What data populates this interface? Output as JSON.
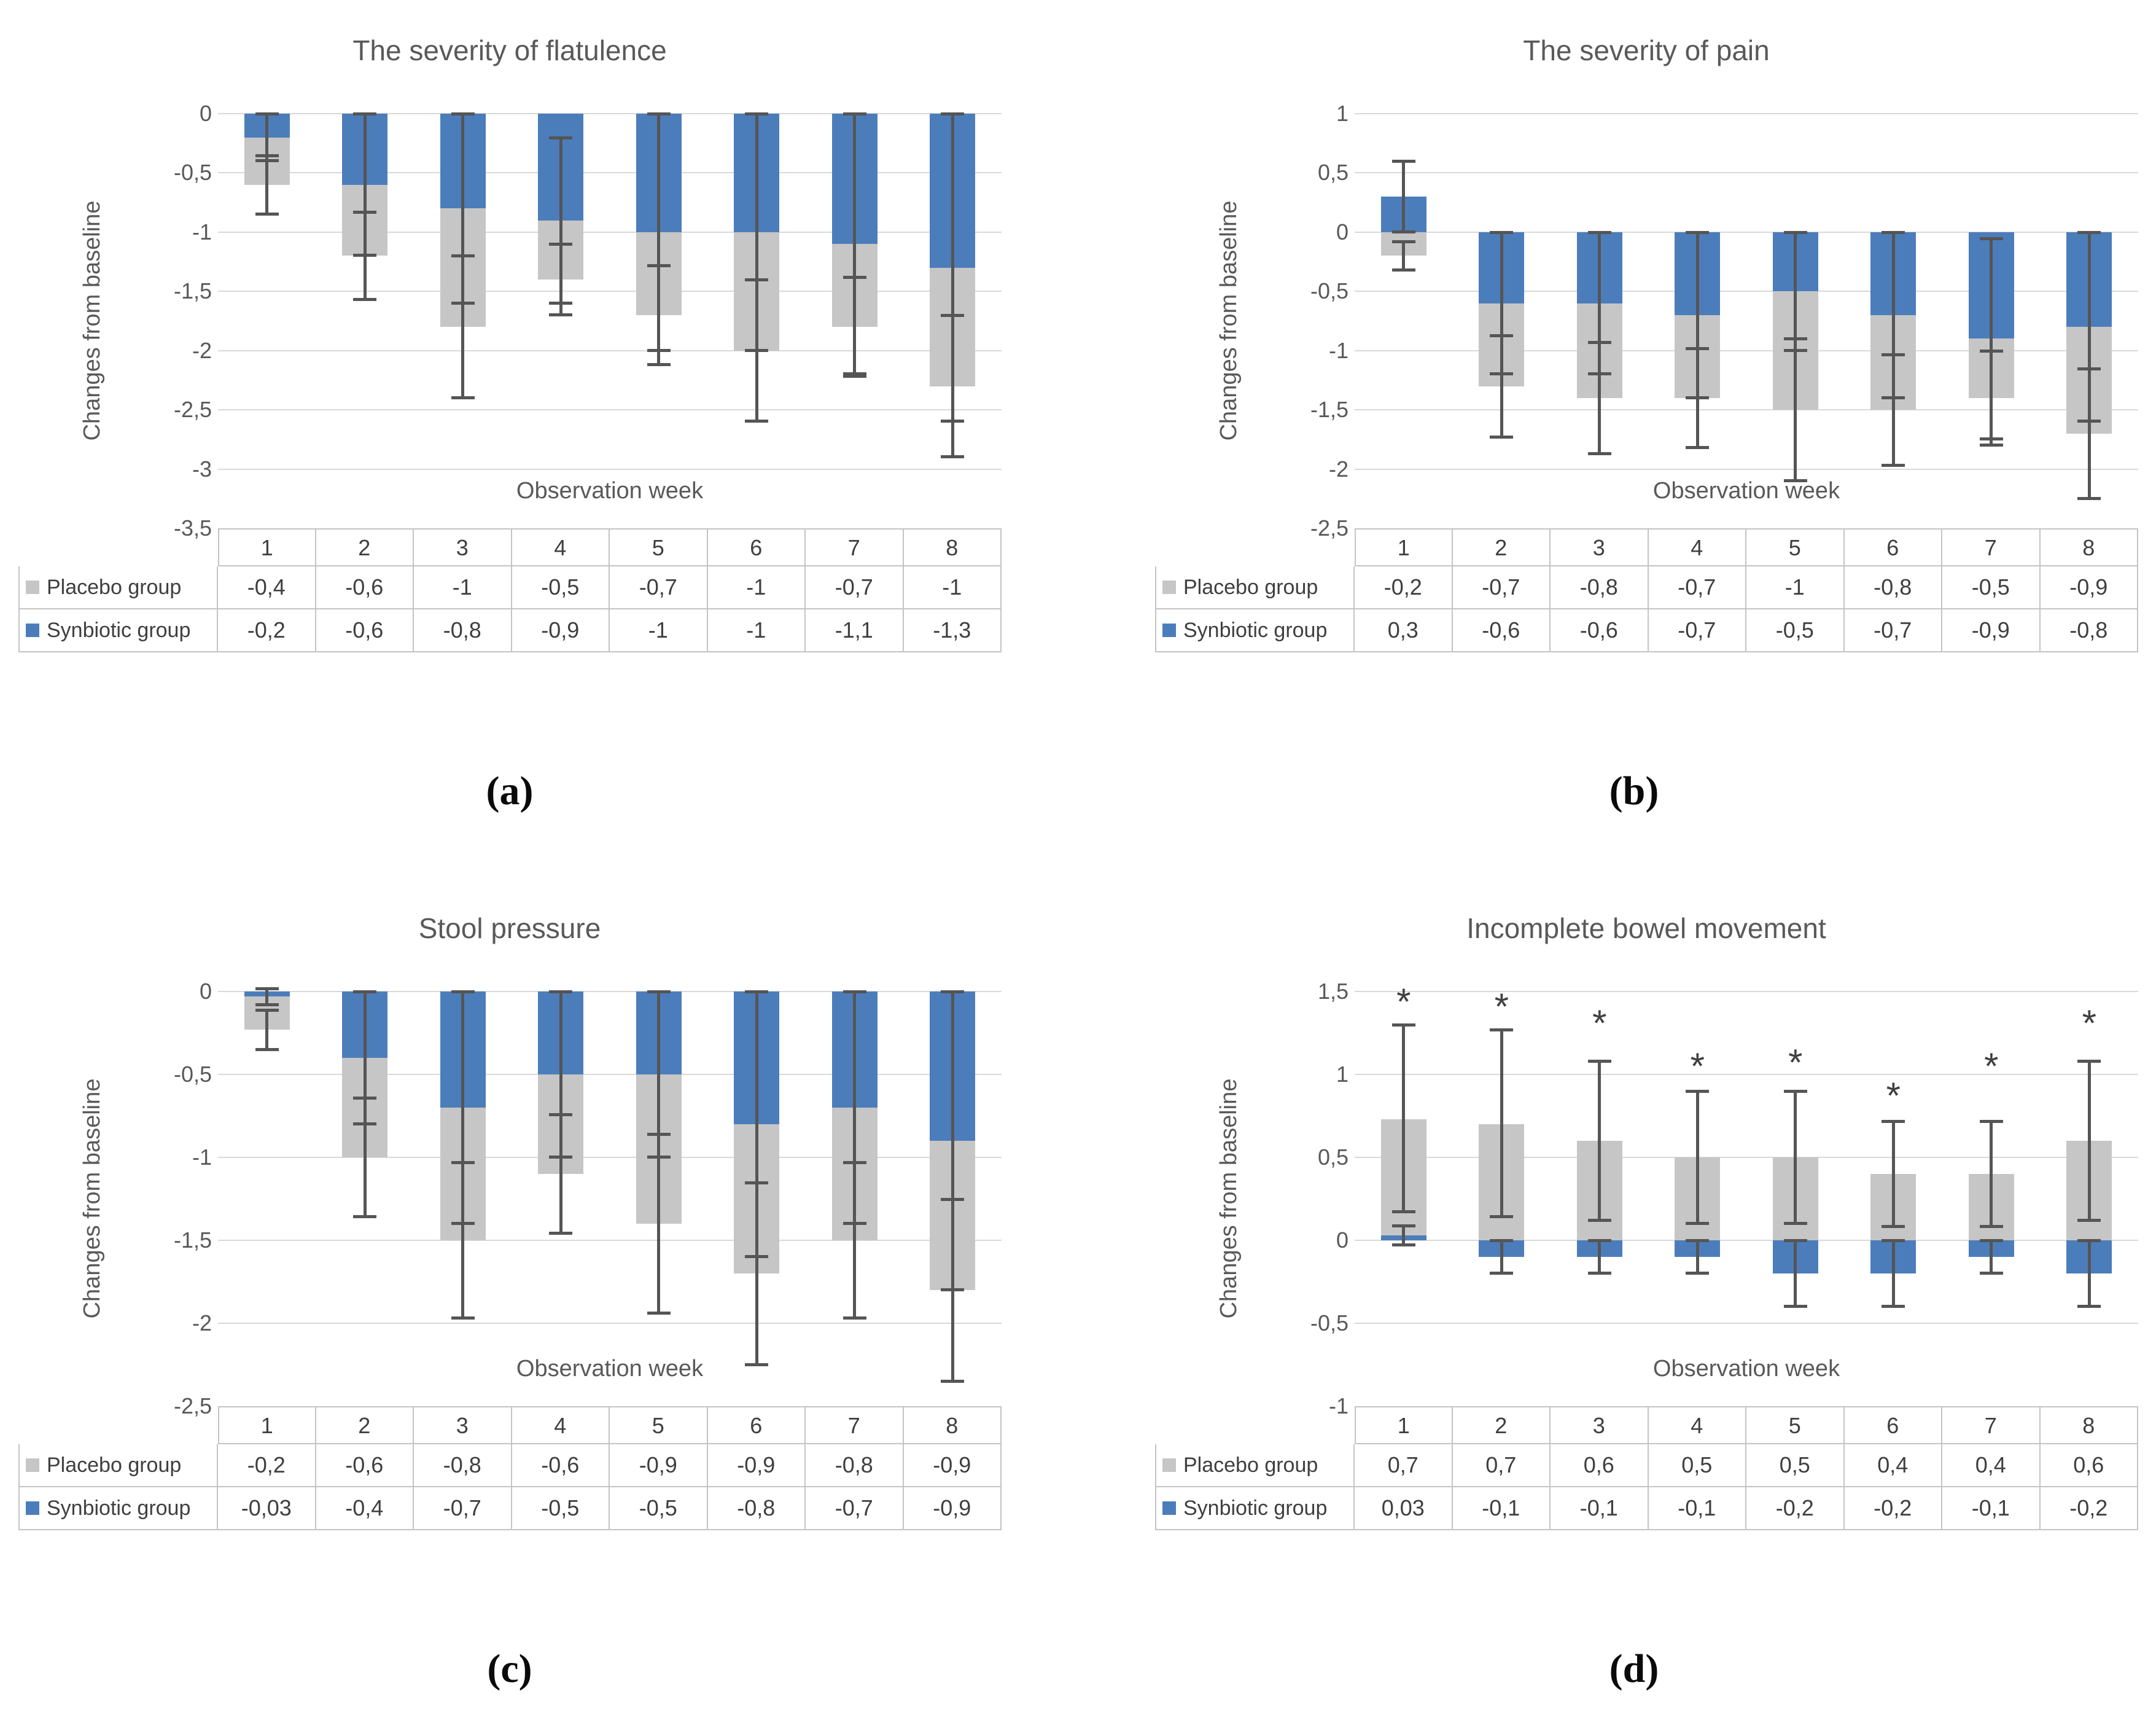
{
  "figure": {
    "ylabel": "Changes from baseline",
    "xlabel": "Observation week",
    "weeks": [
      "1",
      "2",
      "3",
      "4",
      "5",
      "6",
      "7",
      "8"
    ],
    "legend": [
      {
        "label": "Placebo group",
        "role": "placebo"
      },
      {
        "label": "Synbiotic group",
        "role": "synbiotic"
      }
    ],
    "colors": {
      "placebo": "#C6C6C6",
      "synbiotic": "#4C7DBB",
      "error_bar": "#555555",
      "gridline": "#D9D9D9",
      "axis_text": "#595959",
      "table_text": "#3F3F3F",
      "table_border": "#C4C4C4",
      "asterisk": "#404040"
    }
  },
  "chart_data": [
    {
      "panel": "a",
      "label": "(a)",
      "type": "bar",
      "stacked": true,
      "title": "The severity of flatulence",
      "xlabel": "Observation week",
      "ylabel": "Changes from baseline",
      "categories": [
        "1",
        "2",
        "3",
        "4",
        "5",
        "6",
        "7",
        "8"
      ],
      "yticks": [
        0,
        -0.5,
        -1,
        -1.5,
        -2,
        -2.5,
        -3,
        -3.5
      ],
      "ytick_labels": [
        "0",
        "-0,5",
        "-1",
        "-1,5",
        "-2",
        "-2,5",
        "-3",
        "-3,5"
      ],
      "ylim": [
        -3.5,
        0
      ],
      "stack_order": [
        "Synbiotic group",
        "Placebo group"
      ],
      "series": [
        {
          "name": "Placebo group",
          "role": "placebo",
          "values": [
            -0.4,
            -0.6,
            -1,
            -0.5,
            -0.7,
            -1,
            -0.7,
            -1
          ],
          "labels": [
            "-0,4",
            "-0,6",
            "-1",
            "-0,5",
            "-0,7",
            "-1",
            "-0,7",
            "-1"
          ],
          "error_range": [
            [
              -0.35,
              -0.85
            ],
            [
              -0.83,
              -1.57
            ],
            [
              -1.2,
              -2.4
            ],
            [
              -1.1,
              -1.7
            ],
            [
              -1.28,
              -2.12
            ],
            [
              -1.4,
              -2.6
            ],
            [
              -1.38,
              -2.22
            ],
            [
              -1.7,
              -2.9
            ]
          ]
        },
        {
          "name": "Synbiotic group",
          "role": "synbiotic",
          "values": [
            -0.2,
            -0.6,
            -0.8,
            -0.9,
            -1,
            -1,
            -1.1,
            -1.3
          ],
          "labels": [
            "-0,2",
            "-0,6",
            "-0,8",
            "-0,9",
            "-1",
            "-1",
            "-1,1",
            "-1,3"
          ],
          "error_range": [
            [
              0,
              -0.4
            ],
            [
              0,
              -1.2
            ],
            [
              0,
              -1.6
            ],
            [
              -0.2,
              -1.6
            ],
            [
              0,
              -2.0
            ],
            [
              0,
              -2.0
            ],
            [
              0,
              -2.2
            ],
            [
              0,
              -2.6
            ]
          ]
        }
      ]
    },
    {
      "panel": "b",
      "label": "(b)",
      "type": "bar",
      "stacked": true,
      "title": "The severity of pain",
      "xlabel": "Observation week",
      "ylabel": "Changes from baseline",
      "categories": [
        "1",
        "2",
        "3",
        "4",
        "5",
        "6",
        "7",
        "8"
      ],
      "yticks": [
        1,
        0.5,
        0,
        -0.5,
        -1,
        -1.5,
        -2,
        -2.5
      ],
      "ytick_labels": [
        "1",
        "0,5",
        "0",
        "-0,5",
        "-1",
        "-1,5",
        "-2",
        "-2,5"
      ],
      "ylim": [
        -2.5,
        1
      ],
      "stack_order": [
        "Synbiotic group",
        "Placebo group"
      ],
      "series": [
        {
          "name": "Placebo group",
          "role": "placebo",
          "values": [
            -0.2,
            -0.7,
            -0.8,
            -0.7,
            -1,
            -0.8,
            -0.5,
            -0.9
          ],
          "labels": [
            "-0,2",
            "-0,7",
            "-0,8",
            "-0,7",
            "-1",
            "-0,8",
            "-0,5",
            "-0,9"
          ],
          "error_range": [
            [
              -0.08,
              -0.32
            ],
            [
              -0.87,
              -1.73
            ],
            [
              -0.93,
              -1.87
            ],
            [
              -0.98,
              -1.82
            ],
            [
              -0.9,
              -2.1
            ],
            [
              -1.03,
              -1.97
            ],
            [
              -1.0,
              -1.8
            ],
            [
              -1.15,
              -2.25
            ]
          ]
        },
        {
          "name": "Synbiotic group",
          "role": "synbiotic",
          "values": [
            0.3,
            -0.6,
            -0.6,
            -0.7,
            -0.5,
            -0.7,
            -0.9,
            -0.8
          ],
          "labels": [
            "0,3",
            "-0,6",
            "-0,6",
            "-0,7",
            "-0,5",
            "-0,7",
            "-0,9",
            "-0,8"
          ],
          "error_range": [
            [
              0.6,
              0.0
            ],
            [
              0,
              -1.2
            ],
            [
              0,
              -1.2
            ],
            [
              0,
              -1.4
            ],
            [
              0,
              -1.0
            ],
            [
              0,
              -1.4
            ],
            [
              -0.05,
              -1.75
            ],
            [
              0,
              -1.6
            ]
          ]
        }
      ]
    },
    {
      "panel": "c",
      "label": "(c)",
      "type": "bar",
      "stacked": true,
      "title": "Stool pressure",
      "xlabel": "Observation week",
      "ylabel": "Changes from baseline",
      "categories": [
        "1",
        "2",
        "3",
        "4",
        "5",
        "6",
        "7",
        "8"
      ],
      "yticks": [
        0,
        -0.5,
        -1,
        -1.5,
        -2,
        -2.5
      ],
      "ytick_labels": [
        "0",
        "-0,5",
        "-1",
        "-1,5",
        "-2",
        "-2,5"
      ],
      "ylim": [
        -2.5,
        0
      ],
      "stack_order": [
        "Synbiotic group",
        "Placebo group"
      ],
      "series": [
        {
          "name": "Placebo group",
          "role": "placebo",
          "values": [
            -0.2,
            -0.6,
            -0.8,
            -0.6,
            -0.9,
            -0.9,
            -0.8,
            -0.9
          ],
          "labels": [
            "-0,2",
            "-0,6",
            "-0,8",
            "-0,6",
            "-0,9",
            "-0,9",
            "-0,8",
            "-0,9"
          ],
          "error_range": [
            [
              -0.11,
              -0.35
            ],
            [
              -0.64,
              -1.36
            ],
            [
              -1.03,
              -1.97
            ],
            [
              -0.74,
              -1.46
            ],
            [
              -0.86,
              -1.94
            ],
            [
              -1.15,
              -2.25
            ],
            [
              -1.03,
              -1.97
            ],
            [
              -1.25,
              -2.35
            ]
          ]
        },
        {
          "name": "Synbiotic group",
          "role": "synbiotic",
          "values": [
            -0.03,
            -0.4,
            -0.7,
            -0.5,
            -0.5,
            -0.8,
            -0.7,
            -0.9
          ],
          "labels": [
            "-0,03",
            "-0,4",
            "-0,7",
            "-0,5",
            "-0,5",
            "-0,8",
            "-0,7",
            "-0,9"
          ],
          "error_range": [
            [
              0.02,
              -0.08
            ],
            [
              0,
              -0.8
            ],
            [
              0,
              -1.4
            ],
            [
              0,
              -1.0
            ],
            [
              0,
              -1.0
            ],
            [
              0,
              -1.6
            ],
            [
              0,
              -1.4
            ],
            [
              0,
              -1.8
            ]
          ]
        }
      ]
    },
    {
      "panel": "d",
      "label": "(d)",
      "type": "bar",
      "stacked": true,
      "title": "Incomplete bowel movement",
      "xlabel": "Observation week",
      "ylabel": "Changes from baseline",
      "categories": [
        "1",
        "2",
        "3",
        "4",
        "5",
        "6",
        "7",
        "8"
      ],
      "yticks": [
        1.5,
        1,
        0.5,
        0,
        -0.5,
        -1
      ],
      "ytick_labels": [
        "1,5",
        "1",
        "0,5",
        "0",
        "-0,5",
        "-1"
      ],
      "ylim": [
        -1,
        1.5
      ],
      "stack_order": [
        "Synbiotic group",
        "Placebo group"
      ],
      "asterisk": "*",
      "asterisk_y": [
        1.45,
        1.42,
        1.32,
        1.06,
        1.08,
        0.88,
        1.06,
        1.32
      ],
      "series": [
        {
          "name": "Placebo group",
          "role": "placebo",
          "values": [
            0.7,
            0.7,
            0.6,
            0.5,
            0.5,
            0.4,
            0.4,
            0.6
          ],
          "labels": [
            "0,7",
            "0,7",
            "0,6",
            "0,5",
            "0,5",
            "0,4",
            "0,4",
            "0,6"
          ],
          "error_range": [
            [
              1.3,
              0.17
            ],
            [
              1.27,
              0.14
            ],
            [
              1.08,
              0.12
            ],
            [
              0.9,
              0.1
            ],
            [
              0.9,
              0.1
            ],
            [
              0.72,
              0.08
            ],
            [
              0.72,
              0.08
            ],
            [
              1.08,
              0.12
            ]
          ]
        },
        {
          "name": "Synbiotic group",
          "role": "synbiotic",
          "values": [
            0.03,
            -0.1,
            -0.1,
            -0.1,
            -0.2,
            -0.2,
            -0.1,
            -0.2
          ],
          "labels": [
            "0,03",
            "-0,1",
            "-0,1",
            "-0,1",
            "-0,2",
            "-0,2",
            "-0,1",
            "-0,2"
          ],
          "error_range": [
            [
              0.09,
              -0.03
            ],
            [
              0,
              -0.2
            ],
            [
              0,
              -0.2
            ],
            [
              0,
              -0.2
            ],
            [
              0,
              -0.4
            ],
            [
              0,
              -0.4
            ],
            [
              0,
              -0.2
            ],
            [
              0,
              -0.4
            ]
          ]
        }
      ]
    }
  ]
}
